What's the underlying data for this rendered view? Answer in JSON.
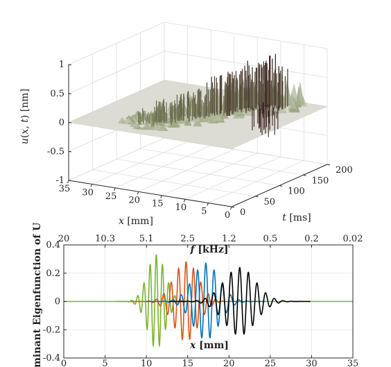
{
  "chart_data": [
    {
      "type": "surface",
      "zlabel": "u(x, t) [nm]",
      "xlabel": "x [mm]",
      "ylabel": "t [ms]",
      "z_ticks": [
        "-1",
        "-0.5",
        "0",
        "0.5",
        "1"
      ],
      "x_ticks": [
        "35",
        "30",
        "25",
        "20",
        "15",
        "10",
        "5",
        "0"
      ],
      "t_ticks": [
        "0",
        "50",
        "100",
        "150",
        "200"
      ],
      "zlim": [
        -1,
        1
      ],
      "xlim": [
        0,
        35
      ],
      "tlim": [
        0,
        200
      ],
      "colors": {
        "flat": "#dcdcd4",
        "mid": "#8c9a6e",
        "peak": "#3e2624"
      },
      "ridge_points": [
        {
          "x": 22,
          "t": 40,
          "u": 0.22
        },
        {
          "x": 20,
          "t": 60,
          "u": 0.35
        },
        {
          "x": 18,
          "t": 80,
          "u": 0.45
        },
        {
          "x": 16,
          "t": 100,
          "u": 0.55
        },
        {
          "x": 14,
          "t": 120,
          "u": 0.65
        },
        {
          "x": 12,
          "t": 140,
          "u": 0.72
        },
        {
          "x": 10,
          "t": 160,
          "u": 0.8
        },
        {
          "x": 8,
          "t": 170,
          "u": 0.85
        }
      ]
    },
    {
      "type": "line",
      "ylabel": "Dominant Eigenfunction of U",
      "xlabel": "x [mm]",
      "top_xlabel": "f [kHz]",
      "xlim": [
        0,
        35
      ],
      "ylim": [
        -0.4,
        0.4
      ],
      "x_ticks": [
        "0",
        "5",
        "10",
        "15",
        "20",
        "25",
        "30",
        "35"
      ],
      "y_ticks": [
        "-0.4",
        "-0.2",
        "0",
        "0.2",
        "0.4"
      ],
      "top_ticks": [
        "20",
        "10.3",
        "5.1",
        "2.5",
        "1.2",
        "0.5",
        "0.2",
        "0.02"
      ],
      "series": [
        {
          "color": "#7ab32e",
          "center": 11.2,
          "amplitude": 0.33,
          "sigma": 1.1,
          "wavelength": 0.75
        },
        {
          "color": "#d95319",
          "center": 14.8,
          "amplitude": 0.28,
          "sigma": 1.5,
          "wavelength": 0.9
        },
        {
          "color": "#0072bd",
          "center": 17.2,
          "amplitude": 0.27,
          "sigma": 1.6,
          "wavelength": 1.0
        },
        {
          "color": "#000000",
          "center": 21.3,
          "amplitude": 0.24,
          "sigma": 1.9,
          "wavelength": 1.05
        }
      ],
      "baseline_color": "#7ab32e"
    }
  ]
}
